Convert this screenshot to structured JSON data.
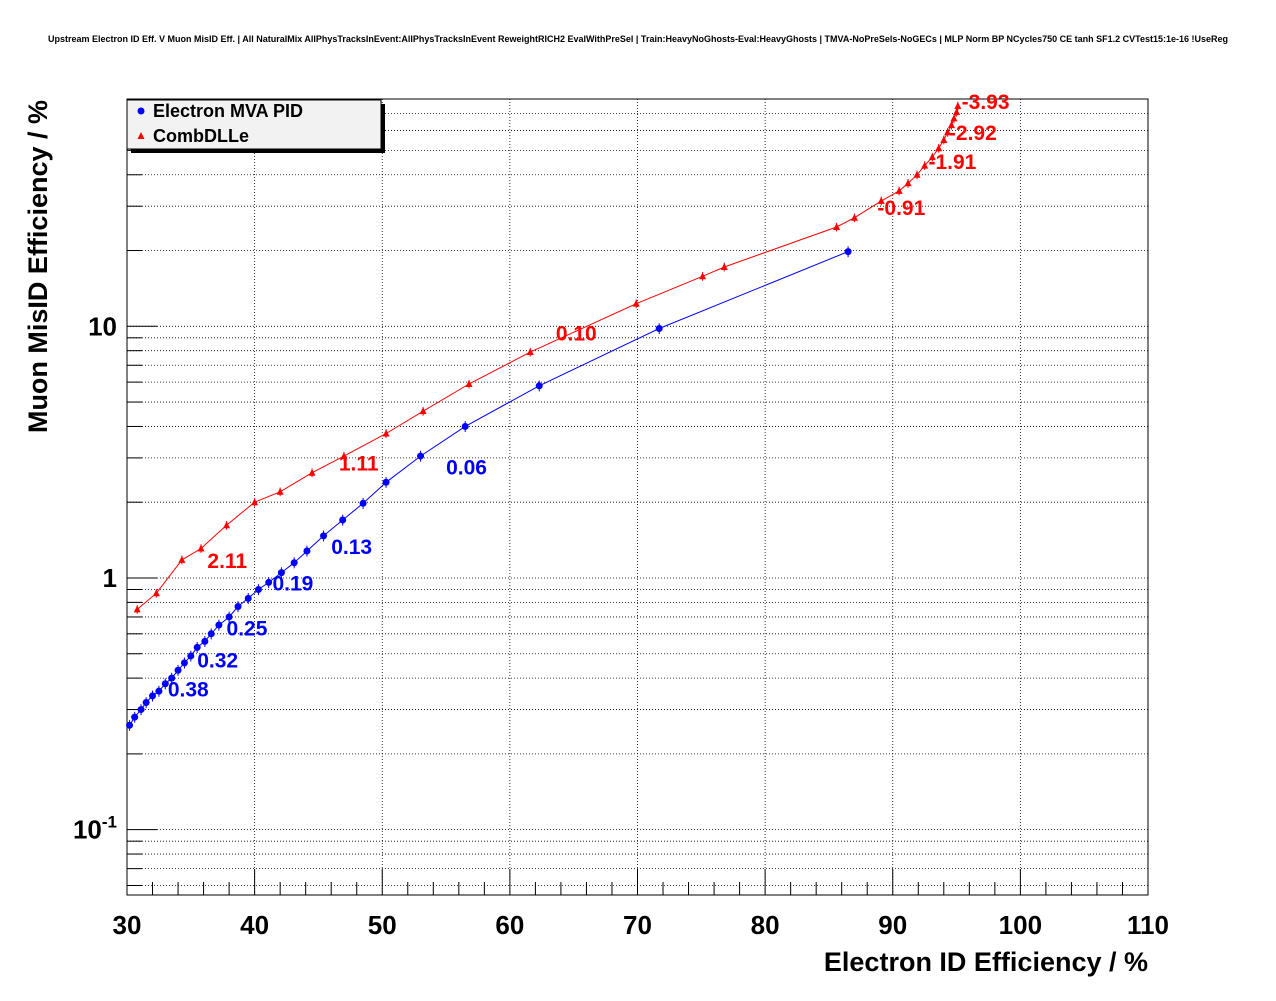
{
  "chart_data": {
    "type": "scatter",
    "title": "Upstream Electron ID Eff. V Muon MisID Eff. | All NaturalMix AllPhysTracksInEvent:AllPhysTracksInEvent ReweightRICH2 EvalWithPreSel | Train:HeavyNoGhosts-Eval:HeavyGhosts | TMVA-NoPreSels-NoGECs | MLP Norm BP NCycles750 CE tanh SF1.2 CVTest15:1e-16 !UseReg",
    "xlabel": "Electron ID Efficiency / %",
    "ylabel": "Muon MisID Efficiency / %",
    "xlim": [
      30,
      110
    ],
    "ylim": [
      0.055,
      80
    ],
    "yscale": "log",
    "grid": true,
    "legend_position": "top-left",
    "x_ticks": [
      "30",
      "40",
      "50",
      "60",
      "70",
      "80",
      "90",
      "100",
      "110"
    ],
    "y_tick_labels": [
      {
        "value": 0.1,
        "base": "10",
        "exponent": "-1"
      },
      {
        "value": 1,
        "base": "1",
        "exponent": ""
      },
      {
        "value": 10,
        "base": "10",
        "exponent": ""
      }
    ],
    "series": [
      {
        "name": "Electron MVA PID",
        "color": "#0000ff",
        "marker": "circle",
        "points": [
          [
            30.2,
            0.26
          ],
          [
            30.6,
            0.28
          ],
          [
            31.1,
            0.3
          ],
          [
            31.5,
            0.32
          ],
          [
            32.0,
            0.34
          ],
          [
            32.5,
            0.355
          ],
          [
            33.0,
            0.38
          ],
          [
            33.5,
            0.4
          ],
          [
            34.0,
            0.43
          ],
          [
            34.5,
            0.46
          ],
          [
            35.0,
            0.49
          ],
          [
            35.5,
            0.53
          ],
          [
            36.1,
            0.56
          ],
          [
            36.6,
            0.6
          ],
          [
            37.2,
            0.65
          ],
          [
            38.0,
            0.7
          ],
          [
            38.7,
            0.77
          ],
          [
            39.5,
            0.83
          ],
          [
            40.3,
            0.9
          ],
          [
            41.1,
            0.96
          ],
          [
            42.1,
            1.05
          ],
          [
            43.1,
            1.15
          ],
          [
            44.1,
            1.28
          ],
          [
            45.4,
            1.47
          ],
          [
            46.9,
            1.7
          ],
          [
            48.5,
            1.98
          ],
          [
            50.3,
            2.4
          ],
          [
            53.0,
            3.05
          ],
          [
            56.5,
            4.0
          ],
          [
            62.3,
            5.8
          ],
          [
            71.7,
            9.8
          ],
          [
            86.5,
            19.8
          ]
        ],
        "labels": [
          {
            "text": "0.38",
            "x": 33.2,
            "y": 0.36
          },
          {
            "text": "0.32",
            "x": 35.5,
            "y": 0.47
          },
          {
            "text": "0.25",
            "x": 37.8,
            "y": 0.63
          },
          {
            "text": "0.19",
            "x": 41.4,
            "y": 0.95
          },
          {
            "text": "0.13",
            "x": 46.0,
            "y": 1.33
          },
          {
            "text": "0.06",
            "x": 55.0,
            "y": 2.75
          }
        ]
      },
      {
        "name": "CombDLLe",
        "color": "#ff0000",
        "marker": "triangle",
        "points": [
          [
            30.8,
            0.75
          ],
          [
            32.3,
            0.87
          ],
          [
            34.3,
            1.18
          ],
          [
            35.8,
            1.31
          ],
          [
            37.8,
            1.62
          ],
          [
            40.0,
            2.0
          ],
          [
            42.0,
            2.2
          ],
          [
            44.5,
            2.62
          ],
          [
            47.0,
            3.05
          ],
          [
            50.3,
            3.75
          ],
          [
            53.2,
            4.6
          ],
          [
            56.8,
            5.9
          ],
          [
            61.6,
            7.9
          ],
          [
            69.9,
            12.3
          ],
          [
            75.1,
            15.8
          ],
          [
            76.8,
            17.2
          ],
          [
            85.6,
            24.8
          ],
          [
            87.0,
            27.0
          ],
          [
            89.1,
            31.5
          ],
          [
            90.5,
            34.5
          ],
          [
            91.2,
            37.0
          ],
          [
            91.9,
            40.0
          ],
          [
            92.5,
            43.5
          ],
          [
            93.1,
            47.0
          ],
          [
            93.6,
            51.0
          ],
          [
            94.0,
            55.0
          ],
          [
            94.3,
            59.0
          ],
          [
            94.6,
            63.0
          ],
          [
            94.8,
            67.0
          ],
          [
            95.0,
            71.0
          ],
          [
            95.1,
            75.0
          ]
        ],
        "labels": [
          {
            "text": "2.11",
            "x": 36.3,
            "y": 1.17
          },
          {
            "text": "1.11",
            "x": 46.6,
            "y": 2.85
          },
          {
            "text": "0.10",
            "x": 63.6,
            "y": 9.35
          },
          {
            "text": "-0.91",
            "x": 88.8,
            "y": 29.5
          },
          {
            "text": "-1.91",
            "x": 92.8,
            "y": 45.0
          },
          {
            "text": "-2.92",
            "x": 94.4,
            "y": 58.5
          },
          {
            "text": "-3.93",
            "x": 95.4,
            "y": 78.0
          }
        ]
      }
    ]
  }
}
